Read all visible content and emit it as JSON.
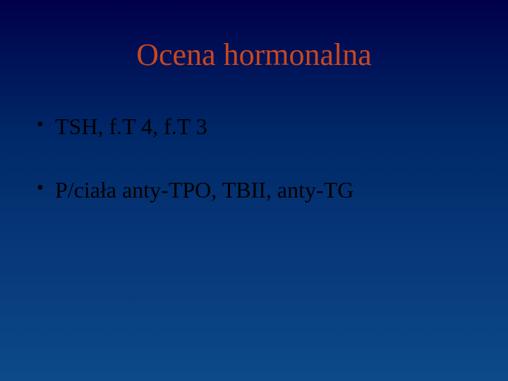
{
  "slide": {
    "background_gradient": [
      "#00004a",
      "#002868",
      "#083a7a",
      "#0c4a8a"
    ],
    "title": {
      "text": "Ocena hormonalna",
      "color": "#c7481e",
      "font_size_pt": 44,
      "font_family": "Times New Roman"
    },
    "bullets": [
      {
        "text": "TSH, f.T 4, f.T 3",
        "color": "#000000",
        "font_size_pt": 32
      },
      {
        "text": "P/ciała anty-TPO, TBII, anty-TG",
        "color": "#000000",
        "font_size_pt": 32
      }
    ],
    "bullet_marker_color": "#000000"
  }
}
